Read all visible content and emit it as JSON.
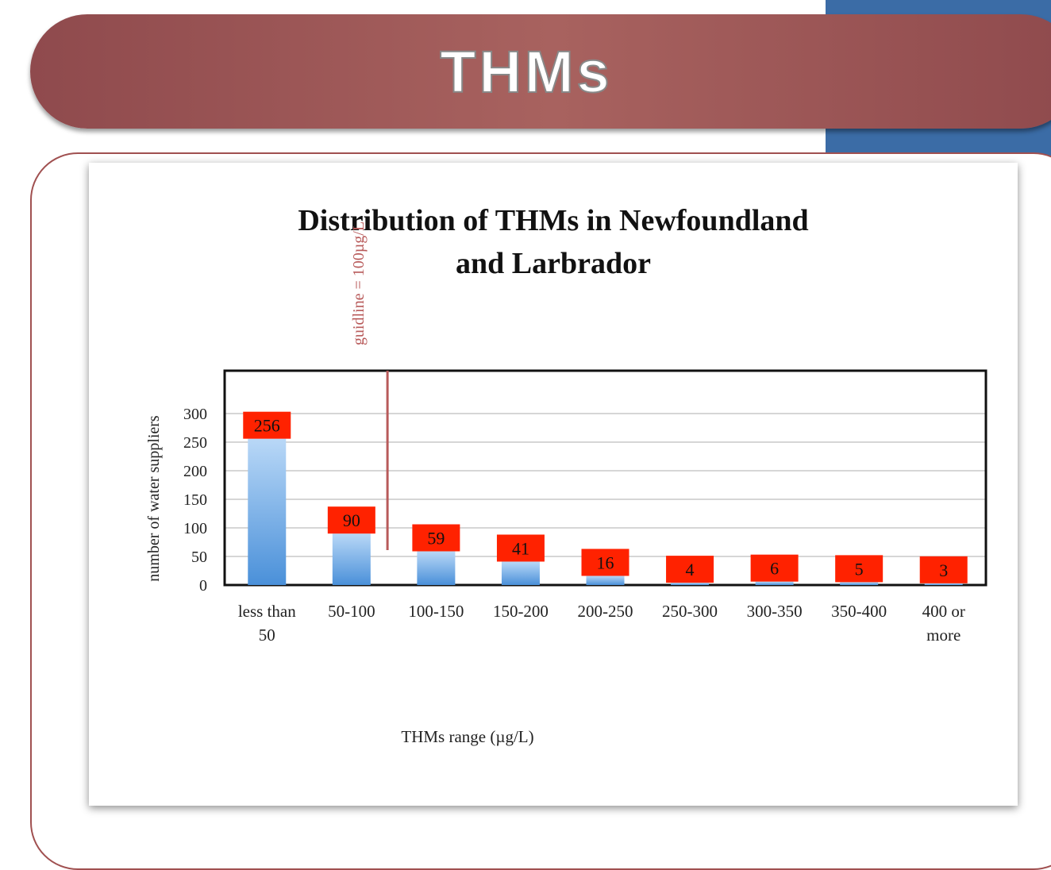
{
  "slide_title": "THMs",
  "chart_data": {
    "type": "bar",
    "title": "Distribution of THMs in Newfoundland and Larbrador",
    "x_label": "THMs range (µg/L)",
    "y_label": "number of water suppliers",
    "categories": [
      "less than 50",
      "50-100",
      "100-150",
      "150-200",
      "200-250",
      "250-300",
      "300-350",
      "350-400",
      "400 or more"
    ],
    "values": [
      256,
      90,
      59,
      41,
      16,
      4,
      6,
      5,
      3
    ],
    "color": "#6aa7e6",
    "label_color": "#ff2200",
    "ylim": [
      0,
      375
    ],
    "yticks": [
      0,
      50,
      100,
      150,
      200,
      250,
      300
    ],
    "grid": true,
    "annotation": "guidline = 100µg/L",
    "annotation_color": "#b85a5a"
  }
}
